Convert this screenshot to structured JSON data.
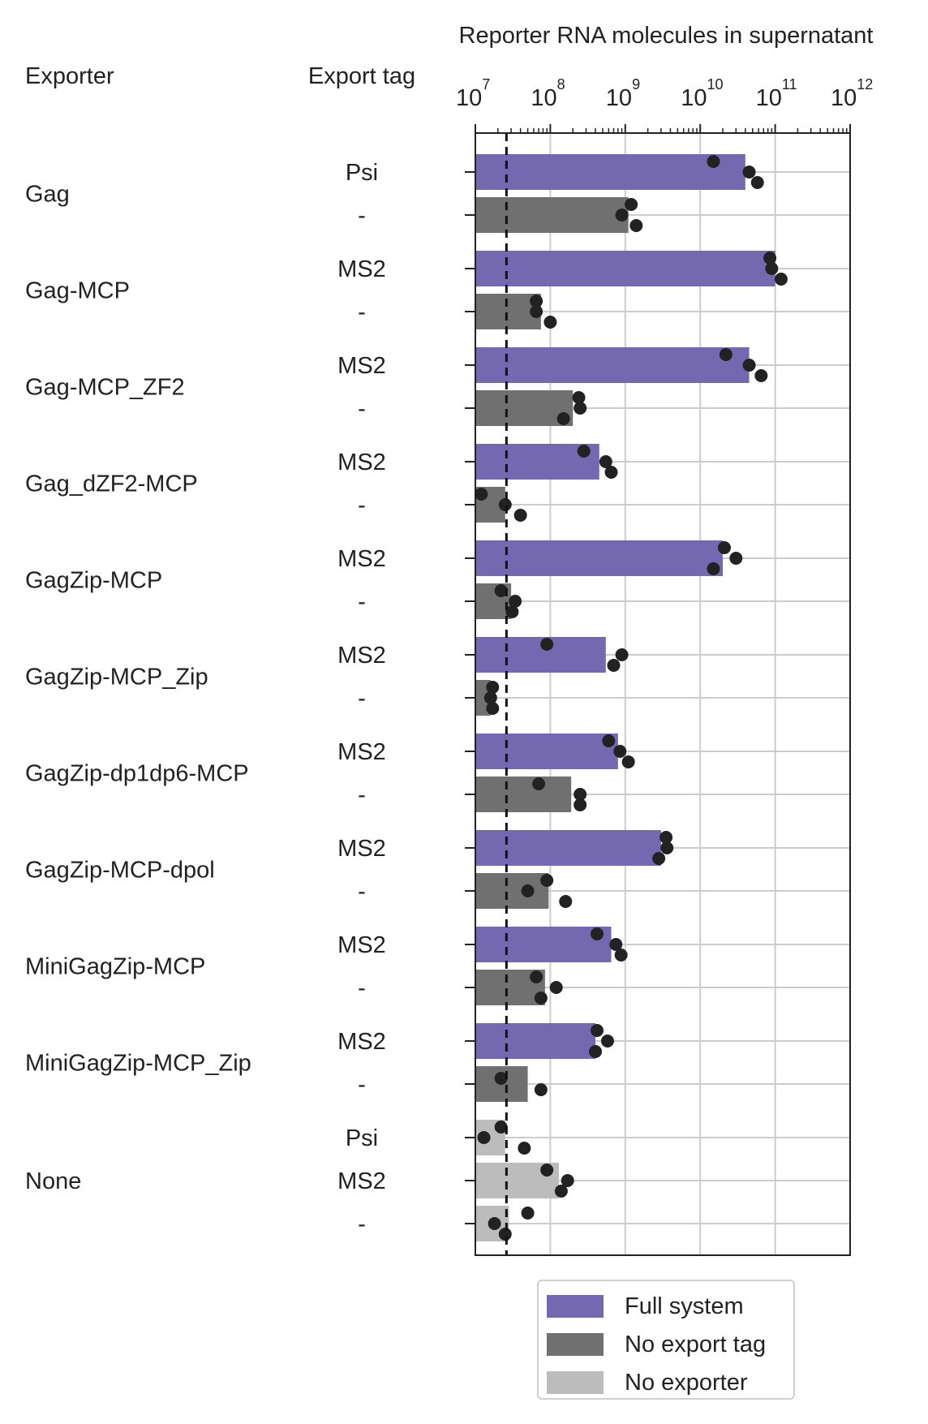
{
  "chart_data": {
    "type": "bar",
    "orientation": "horizontal",
    "title": "Reporter RNA molecules in supernatant",
    "xscale": "log",
    "xlim": [
      10000000.0,
      1000000000000.0
    ],
    "x_ticks": [
      {
        "base": "10",
        "exp": "7"
      },
      {
        "base": "10",
        "exp": "8"
      },
      {
        "base": "10",
        "exp": "9"
      },
      {
        "base": "10",
        "exp": "10"
      },
      {
        "base": "10",
        "exp": "11"
      },
      {
        "base": "10",
        "exp": "12"
      }
    ],
    "threshold_line": 26000000,
    "grid": true,
    "column_headers": {
      "exporter": "Exporter",
      "tag": "Export tag"
    },
    "groups": [
      {
        "exporter": "Gag",
        "rows": [
          {
            "tag": "Psi",
            "category": "full",
            "value": 40000000000,
            "points": [
              15000000000,
              45000000000,
              58000000000
            ]
          },
          {
            "tag": "-",
            "category": "notag",
            "value": 1100000000,
            "points": [
              1200000000,
              900000000,
              1400000000
            ]
          }
        ]
      },
      {
        "exporter": "Gag-MCP",
        "rows": [
          {
            "tag": "MS2",
            "category": "full",
            "value": 100000000000,
            "points": [
              85000000000,
              90000000000,
              120000000000
            ]
          },
          {
            "tag": "-",
            "category": "notag",
            "value": 75000000,
            "points": [
              65000000,
              65000000,
              100000000
            ]
          }
        ]
      },
      {
        "exporter": "Gag-MCP_ZF2",
        "rows": [
          {
            "tag": "MS2",
            "category": "full",
            "value": 45000000000,
            "points": [
              22000000000,
              45000000000,
              65000000000
            ]
          },
          {
            "tag": "-",
            "category": "notag",
            "value": 200000000,
            "points": [
              240000000,
              250000000,
              150000000
            ]
          }
        ]
      },
      {
        "exporter": "Gag_dZF2-MCP",
        "rows": [
          {
            "tag": "MS2",
            "category": "full",
            "value": 450000000,
            "points": [
              280000000,
              550000000,
              650000000
            ]
          },
          {
            "tag": "-",
            "category": "notag",
            "value": 25000000,
            "points": [
              12000000,
              25000000,
              40000000
            ]
          }
        ]
      },
      {
        "exporter": "GagZip-MCP",
        "rows": [
          {
            "tag": "MS2",
            "category": "full",
            "value": 20000000000,
            "points": [
              21000000000,
              30000000000,
              15000000000
            ]
          },
          {
            "tag": "-",
            "category": "notag",
            "value": 30000000,
            "points": [
              22000000,
              34000000,
              31000000
            ]
          }
        ]
      },
      {
        "exporter": "GagZip-MCP_Zip",
        "rows": [
          {
            "tag": "MS2",
            "category": "full",
            "value": 550000000,
            "points": [
              90000000,
              900000000,
              700000000
            ]
          },
          {
            "tag": "-",
            "category": "notag",
            "value": 16000000,
            "points": [
              17000000,
              16000000,
              17000000
            ]
          }
        ]
      },
      {
        "exporter": "GagZip-dp1dp6-MCP",
        "rows": [
          {
            "tag": "MS2",
            "category": "full",
            "value": 800000000,
            "points": [
              600000000,
              850000000,
              1100000000
            ]
          },
          {
            "tag": "-",
            "category": "notag",
            "value": 190000000,
            "points": [
              70000000,
              250000000,
              250000000
            ]
          }
        ]
      },
      {
        "exporter": "GagZip-MCP-dpol",
        "rows": [
          {
            "tag": "MS2",
            "category": "full",
            "value": 3000000000,
            "points": [
              3500000000,
              3600000000,
              2800000000
            ]
          },
          {
            "tag": "-",
            "category": "notag",
            "value": 95000000,
            "points": [
              90000000,
              50000000,
              160000000
            ]
          }
        ]
      },
      {
        "exporter": "MiniGagZip-MCP",
        "rows": [
          {
            "tag": "MS2",
            "category": "full",
            "value": 650000000,
            "points": [
              420000000,
              750000000,
              880000000
            ]
          },
          {
            "tag": "-",
            "category": "notag",
            "value": 85000000,
            "points": [
              65000000,
              120000000,
              75000000
            ]
          }
        ]
      },
      {
        "exporter": "MiniGagZip-MCP_Zip",
        "rows": [
          {
            "tag": "MS2",
            "category": "full",
            "value": 400000000,
            "points": [
              420000000,
              580000000,
              400000000
            ]
          },
          {
            "tag": "-",
            "category": "notag",
            "value": 50000000,
            "points": [
              22000000,
              75000000
            ]
          }
        ]
      },
      {
        "exporter": "None",
        "rows": [
          {
            "tag": "Psi",
            "category": "noexp",
            "value": 25000000,
            "points": [
              22000000,
              13000000,
              45000000
            ]
          },
          {
            "tag": "MS2",
            "category": "noexp",
            "value": 130000000,
            "points": [
              90000000,
              170000000,
              140000000
            ]
          },
          {
            "tag": "-",
            "category": "noexp",
            "value": 28000000,
            "points": [
              50000000,
              18000000,
              25000000
            ]
          }
        ]
      }
    ],
    "legend": [
      {
        "key": "full",
        "label": "Full system",
        "color": "#7469b0"
      },
      {
        "key": "notag",
        "label": "No export tag",
        "color": "#707070"
      },
      {
        "key": "noexp",
        "label": "No exporter",
        "color": "#bcbcbc"
      }
    ],
    "legend_position": "bottom-center"
  }
}
